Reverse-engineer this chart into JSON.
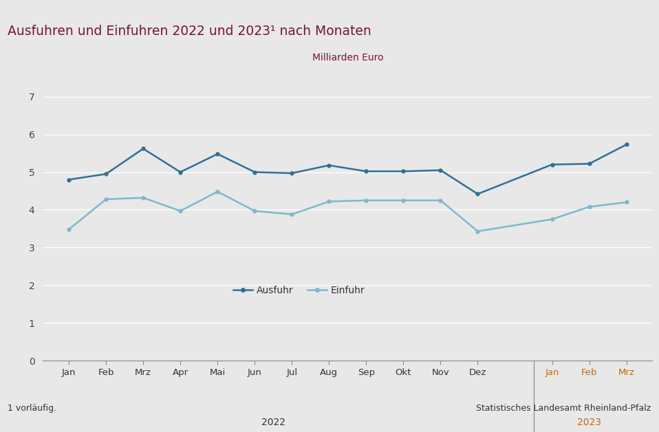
{
  "title": "Ausfuhren und Einfuhren 2022 und 2023¹ nach Monaten",
  "subtitle": "Milliarden Euro",
  "footnote": "1 vorläufig.",
  "source": "Statistisches Landesamt Rheinland-Pfalz",
  "ausfuhr": [
    4.8,
    4.95,
    5.62,
    5.0,
    5.48,
    5.0,
    4.97,
    5.18,
    5.02,
    5.02,
    5.05,
    4.42,
    5.2,
    5.22,
    5.73
  ],
  "einfuhr": [
    3.48,
    4.28,
    4.32,
    3.97,
    4.48,
    3.97,
    3.88,
    4.22,
    4.25,
    4.25,
    4.25,
    3.43,
    3.75,
    4.08,
    4.2
  ],
  "months_2022": [
    "Jan",
    "Feb",
    "Mrz",
    "Apr",
    "Mai",
    "Jun",
    "Jul",
    "Aug",
    "Sep",
    "Okt",
    "Nov",
    "Dez"
  ],
  "months_2023": [
    "Jan",
    "Feb",
    "Mrz"
  ],
  "year_label_2022": "2022",
  "year_label_2023": "2023",
  "ausfuhr_color": "#2e6f99",
  "einfuhr_color": "#7db8cc",
  "title_color": "#7a1430",
  "subtitle_color": "#7a1430",
  "bg_color": "#e8e8e8",
  "header_color": "#7a1430",
  "grid_color": "#ffffff",
  "axis_color": "#888888",
  "tick_color_2022": "#333333",
  "tick_color_2023": "#cc6600",
  "year_color_2022": "#333333",
  "year_color_2023": "#cc6600",
  "footer_color": "#333333",
  "ylim": [
    0,
    7.5
  ],
  "yticks": [
    0,
    1,
    2,
    3,
    4,
    5,
    6,
    7
  ],
  "legend_ausfuhr": "Ausfuhr",
  "legend_einfuhr": "Einfuhr"
}
